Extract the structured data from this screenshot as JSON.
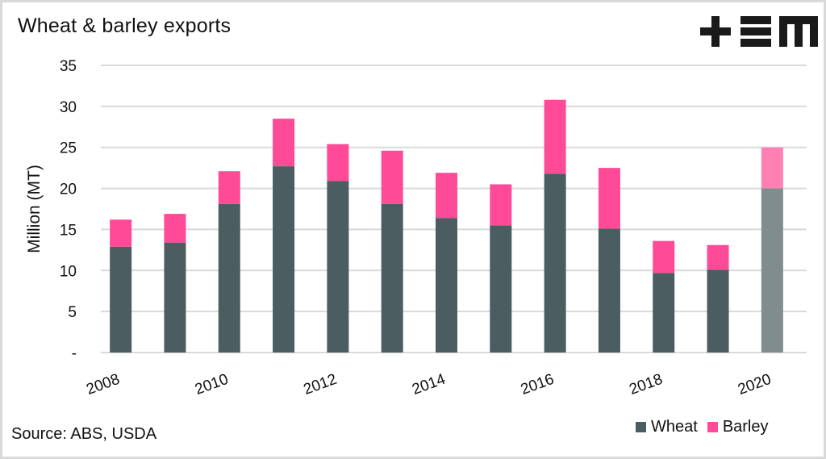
{
  "chart_data": {
    "type": "bar",
    "stacked": true,
    "title": "Wheat & barley exports",
    "xlabel": "",
    "ylabel": "Million (MT)",
    "ylim": [
      0,
      35
    ],
    "yticks": [
      0,
      5,
      10,
      15,
      20,
      25,
      30,
      35
    ],
    "ytick_labels": [
      "-",
      "5",
      "10",
      "15",
      "20",
      "25",
      "30",
      "35"
    ],
    "categories": [
      "2008",
      "2009",
      "2010",
      "2011",
      "2012",
      "2013",
      "2014",
      "2015",
      "2016",
      "2017",
      "2018",
      "2019",
      "2020"
    ],
    "xtick_labels": [
      "2008",
      "2010",
      "2012",
      "2014",
      "2016",
      "2018",
      "2020"
    ],
    "series": [
      {
        "name": "Wheat",
        "color": "#4b5d60",
        "values": [
          12.9,
          13.4,
          18.1,
          22.7,
          20.9,
          18.1,
          16.4,
          15.5,
          21.8,
          15.1,
          9.7,
          10.1,
          20.0
        ]
      },
      {
        "name": "Barley",
        "color": "#ff4a97",
        "values": [
          3.3,
          3.5,
          4.0,
          5.8,
          4.5,
          6.5,
          5.5,
          5.0,
          9.0,
          7.4,
          3.9,
          3.0,
          5.0
        ]
      }
    ],
    "highlighted_category": "2020",
    "highlight_colors": {
      "Wheat": "#7f8d8c",
      "Barley": "#ff80b3"
    },
    "grid": true,
    "legend_position": "bottom-right",
    "source": "Source: ABS, USDA"
  },
  "header": {
    "title": "Wheat & barley exports",
    "logo": "+EM"
  },
  "footer": {
    "source": "Source: ABS, USDA"
  },
  "legend": [
    {
      "label": "Wheat",
      "color": "#4b5d60"
    },
    {
      "label": "Barley",
      "color": "#ff4a97"
    }
  ],
  "colors": {
    "grid": "#d9d9d9",
    "frame": "#d9d9d9"
  }
}
